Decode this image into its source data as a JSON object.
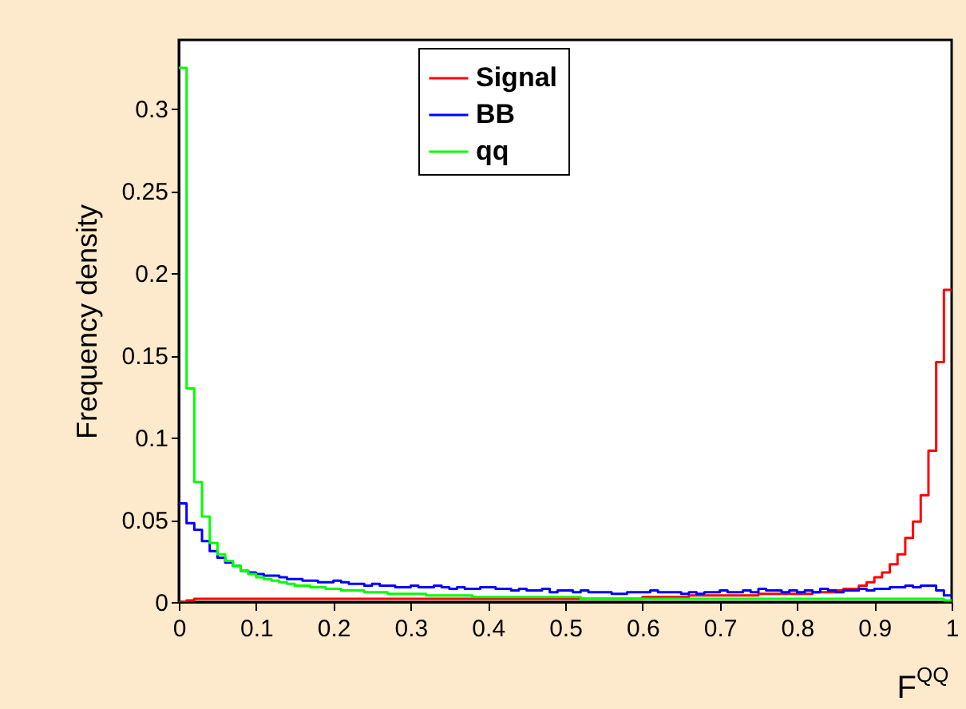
{
  "chart_data": {
    "type": "histogram",
    "xlabel": "F$^{QQ}$",
    "ylabel": "Frequency density",
    "bins": [
      0,
      0.01,
      0.02,
      0.03,
      0.04,
      0.05,
      0.06,
      0.07,
      0.08,
      0.09,
      0.1,
      0.11,
      0.12,
      0.13,
      0.14,
      0.15,
      0.16,
      0.17,
      0.18,
      0.19,
      0.2,
      0.21,
      0.22,
      0.23,
      0.24,
      0.25,
      0.26,
      0.27,
      0.28,
      0.29,
      0.3,
      0.31,
      0.32,
      0.33,
      0.34,
      0.35,
      0.36,
      0.37,
      0.38,
      0.39,
      0.4,
      0.41,
      0.42,
      0.43,
      0.44,
      0.45,
      0.46,
      0.47,
      0.48,
      0.49,
      0.5,
      0.51,
      0.52,
      0.53,
      0.54,
      0.55,
      0.56,
      0.57,
      0.58,
      0.59,
      0.6,
      0.61,
      0.62,
      0.63,
      0.64,
      0.65,
      0.66,
      0.67,
      0.68,
      0.69,
      0.7,
      0.71,
      0.72,
      0.73,
      0.74,
      0.75,
      0.76,
      0.77,
      0.78,
      0.79,
      0.8,
      0.81,
      0.82,
      0.83,
      0.84,
      0.85,
      0.86,
      0.87,
      0.88,
      0.89,
      0.9,
      0.91,
      0.92,
      0.93,
      0.94,
      0.95,
      0.96,
      0.97,
      0.98,
      0.99,
      1
    ],
    "series": [
      {
        "name": "Signal",
        "color": "#ff0000",
        "values": [
          0.0,
          0.001,
          0.002,
          0.002,
          0.002,
          0.002,
          0.002,
          0.002,
          0.002,
          0.002,
          0.002,
          0.002,
          0.002,
          0.002,
          0.002,
          0.002,
          0.002,
          0.002,
          0.002,
          0.002,
          0.002,
          0.002,
          0.002,
          0.002,
          0.002,
          0.002,
          0.002,
          0.002,
          0.002,
          0.002,
          0.002,
          0.002,
          0.002,
          0.002,
          0.002,
          0.002,
          0.002,
          0.002,
          0.002,
          0.002,
          0.002,
          0.002,
          0.002,
          0.002,
          0.002,
          0.002,
          0.002,
          0.002,
          0.002,
          0.002,
          0.002,
          0.002,
          0.002,
          0.002,
          0.002,
          0.002,
          0.002,
          0.002,
          0.002,
          0.002,
          0.003,
          0.003,
          0.003,
          0.003,
          0.003,
          0.003,
          0.004,
          0.004,
          0.004,
          0.004,
          0.004,
          0.004,
          0.004,
          0.004,
          0.004,
          0.005,
          0.005,
          0.005,
          0.005,
          0.005,
          0.005,
          0.005,
          0.006,
          0.006,
          0.006,
          0.007,
          0.008,
          0.008,
          0.01,
          0.012,
          0.015,
          0.018,
          0.023,
          0.029,
          0.039,
          0.049,
          0.065,
          0.092,
          0.146,
          0.19
        ]
      },
      {
        "name": "BB",
        "color": "#0000ff",
        "values": [
          0.06,
          0.048,
          0.044,
          0.037,
          0.031,
          0.027,
          0.024,
          0.022,
          0.019,
          0.018,
          0.017,
          0.016,
          0.016,
          0.015,
          0.014,
          0.014,
          0.013,
          0.013,
          0.012,
          0.012,
          0.013,
          0.012,
          0.011,
          0.011,
          0.01,
          0.011,
          0.01,
          0.01,
          0.009,
          0.009,
          0.01,
          0.009,
          0.009,
          0.01,
          0.009,
          0.008,
          0.009,
          0.008,
          0.008,
          0.009,
          0.009,
          0.008,
          0.008,
          0.007,
          0.008,
          0.007,
          0.007,
          0.008,
          0.006,
          0.007,
          0.007,
          0.006,
          0.007,
          0.006,
          0.006,
          0.006,
          0.005,
          0.005,
          0.006,
          0.006,
          0.006,
          0.007,
          0.006,
          0.006,
          0.006,
          0.005,
          0.006,
          0.005,
          0.006,
          0.006,
          0.007,
          0.006,
          0.006,
          0.007,
          0.006,
          0.008,
          0.007,
          0.007,
          0.006,
          0.007,
          0.006,
          0.007,
          0.006,
          0.008,
          0.007,
          0.006,
          0.007,
          0.007,
          0.008,
          0.007,
          0.008,
          0.008,
          0.009,
          0.009,
          0.01,
          0.009,
          0.01,
          0.01,
          0.007,
          0.004
        ]
      },
      {
        "name": "qq",
        "color": "#00ff00",
        "values": [
          0.325,
          0.13,
          0.073,
          0.052,
          0.036,
          0.029,
          0.025,
          0.022,
          0.019,
          0.017,
          0.015,
          0.014,
          0.013,
          0.012,
          0.011,
          0.01,
          0.01,
          0.009,
          0.009,
          0.008,
          0.008,
          0.007,
          0.007,
          0.007,
          0.006,
          0.006,
          0.006,
          0.005,
          0.005,
          0.005,
          0.005,
          0.005,
          0.004,
          0.004,
          0.004,
          0.004,
          0.004,
          0.004,
          0.003,
          0.003,
          0.003,
          0.003,
          0.003,
          0.003,
          0.003,
          0.003,
          0.003,
          0.003,
          0.003,
          0.003,
          0.003,
          0.003,
          0.002,
          0.002,
          0.002,
          0.002,
          0.002,
          0.002,
          0.002,
          0.002,
          0.002,
          0.002,
          0.002,
          0.002,
          0.002,
          0.002,
          0.002,
          0.002,
          0.002,
          0.002,
          0.002,
          0.002,
          0.002,
          0.002,
          0.002,
          0.002,
          0.002,
          0.002,
          0.002,
          0.002,
          0.002,
          0.002,
          0.002,
          0.002,
          0.002,
          0.002,
          0.002,
          0.002,
          0.002,
          0.002,
          0.002,
          0.002,
          0.002,
          0.002,
          0.002,
          0.002,
          0.002,
          0.002,
          0.002,
          0.001
        ]
      }
    ],
    "xlim": [
      0,
      1
    ],
    "xticks": [
      0,
      0.1,
      0.2,
      0.3,
      0.4,
      0.5,
      0.6,
      0.7,
      0.8,
      0.9,
      1
    ],
    "ylim": [
      0,
      0.342
    ],
    "yticks": [
      0,
      0.05,
      0.1,
      0.15,
      0.2,
      0.25,
      0.3
    ],
    "legend": "top",
    "grid": false
  }
}
